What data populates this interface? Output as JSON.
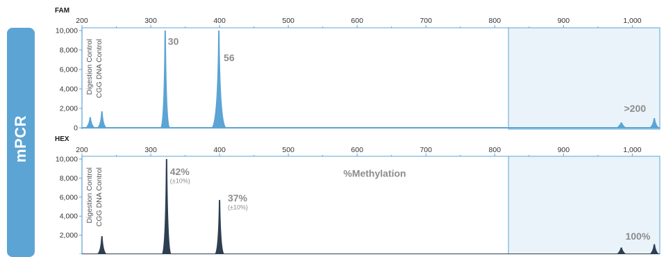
{
  "sidebar": {
    "label": "mPCR"
  },
  "chart_data": [
    {
      "type": "area",
      "title": "FAM",
      "x_ticks": [
        200,
        300,
        400,
        500,
        600,
        700,
        800,
        900,
        1000
      ],
      "x_tick_labels": [
        "200",
        "300",
        "400",
        "500",
        "600",
        "700",
        "800",
        "900",
        "1,000"
      ],
      "y_ticks": [
        0,
        2000,
        4000,
        6000,
        8000,
        10000
      ],
      "y_tick_labels": [
        "0",
        "2,000",
        "4,000",
        "6,000",
        "8,000",
        "10,000"
      ],
      "xlim": [
        200,
        1040
      ],
      "ylim": [
        0,
        10000
      ],
      "shaded_region_x": [
        820,
        1040
      ],
      "control_labels": [
        "Digestion Control",
        "CGG DNA Control"
      ],
      "series": [
        {
          "color": "#5ba4d4",
          "peaks": [
            {
              "x": 212,
              "height": 1100
            },
            {
              "x": 229,
              "height": 1700
            },
            {
              "x": 321,
              "height": 10000
            },
            {
              "x": 399,
              "height": 10000
            },
            {
              "x": 984,
              "height": 550
            },
            {
              "x": 1032,
              "height": 1000
            }
          ]
        }
      ],
      "annotations": [
        {
          "text": "30",
          "x": 325,
          "y": 8900,
          "color": "#8c8c8c"
        },
        {
          "text": "56",
          "x": 406,
          "y": 7200,
          "color": "#8c8c8c"
        },
        {
          "text": ">200",
          "x": 988,
          "y": 2000,
          "color": "#8c8c8c"
        }
      ]
    },
    {
      "type": "area",
      "title": "HEX",
      "x_ticks": [
        200,
        300,
        400,
        500,
        600,
        700,
        800,
        900,
        1000
      ],
      "x_tick_labels": [
        "200",
        "300",
        "400",
        "500",
        "600",
        "700",
        "800",
        "900",
        "1,000"
      ],
      "y_ticks": [
        0,
        2000,
        4000,
        6000,
        8000,
        10000
      ],
      "y_tick_labels": [
        "0",
        "2,000",
        "4,000",
        "6,000",
        "8,000",
        "10,000"
      ],
      "xlim": [
        200,
        1040
      ],
      "ylim": [
        0,
        10000
      ],
      "shaded_region_x": [
        820,
        1040
      ],
      "control_labels": [
        "Digestion Control",
        "CGG DNA Control"
      ],
      "series": [
        {
          "color": "#2f3f52",
          "peaks": [
            {
              "x": 229,
              "height": 1900
            },
            {
              "x": 323,
              "height": 10000
            },
            {
              "x": 400,
              "height": 5700
            },
            {
              "x": 984,
              "height": 700
            },
            {
              "x": 1032,
              "height": 1050
            }
          ]
        }
      ],
      "annotations": [
        {
          "text": "42%",
          "x": 328,
          "y": 8700,
          "color": "#8c8c8c"
        },
        {
          "text": "(±10%)",
          "x": 328,
          "y": 7500,
          "color": "#8c8c8c",
          "small": true
        },
        {
          "text": "37%",
          "x": 412,
          "y": 5900,
          "color": "#8c8c8c"
        },
        {
          "text": "(±10%)",
          "x": 412,
          "y": 4700,
          "color": "#8c8c8c",
          "small": true
        },
        {
          "text": "%Methylation",
          "x": 580,
          "y": 8500,
          "color": "#8c8c8c"
        },
        {
          "text": "100%",
          "x": 990,
          "y": 1900,
          "color": "#8c8c8c"
        }
      ]
    }
  ]
}
